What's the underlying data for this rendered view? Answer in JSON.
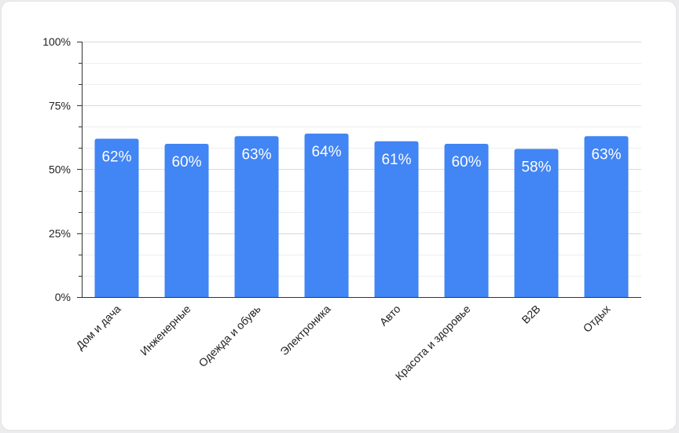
{
  "chart_data": {
    "type": "bar",
    "categories": [
      "Дом и дача",
      "Инженерные",
      "Одежда и обувь",
      "Электроника",
      "Авто",
      "Красота и здоровье",
      "B2B",
      "Отдых"
    ],
    "values": [
      62,
      60,
      63,
      64,
      61,
      60,
      58,
      63
    ],
    "data_labels": [
      "62%",
      "60%",
      "63%",
      "64%",
      "61%",
      "60%",
      "58%",
      "63%"
    ],
    "y_ticks": [
      0,
      25,
      50,
      75,
      100
    ],
    "y_tick_labels": [
      "0%",
      "25%",
      "50%",
      "75%",
      "100%"
    ],
    "ylim": [
      0,
      100
    ],
    "grid": true,
    "legend": "none",
    "colors": {
      "bar": "#4285f4",
      "data_label": "#ffffff",
      "grid": "#e6e6e6",
      "axis": "#333333",
      "text": "#222222"
    }
  }
}
